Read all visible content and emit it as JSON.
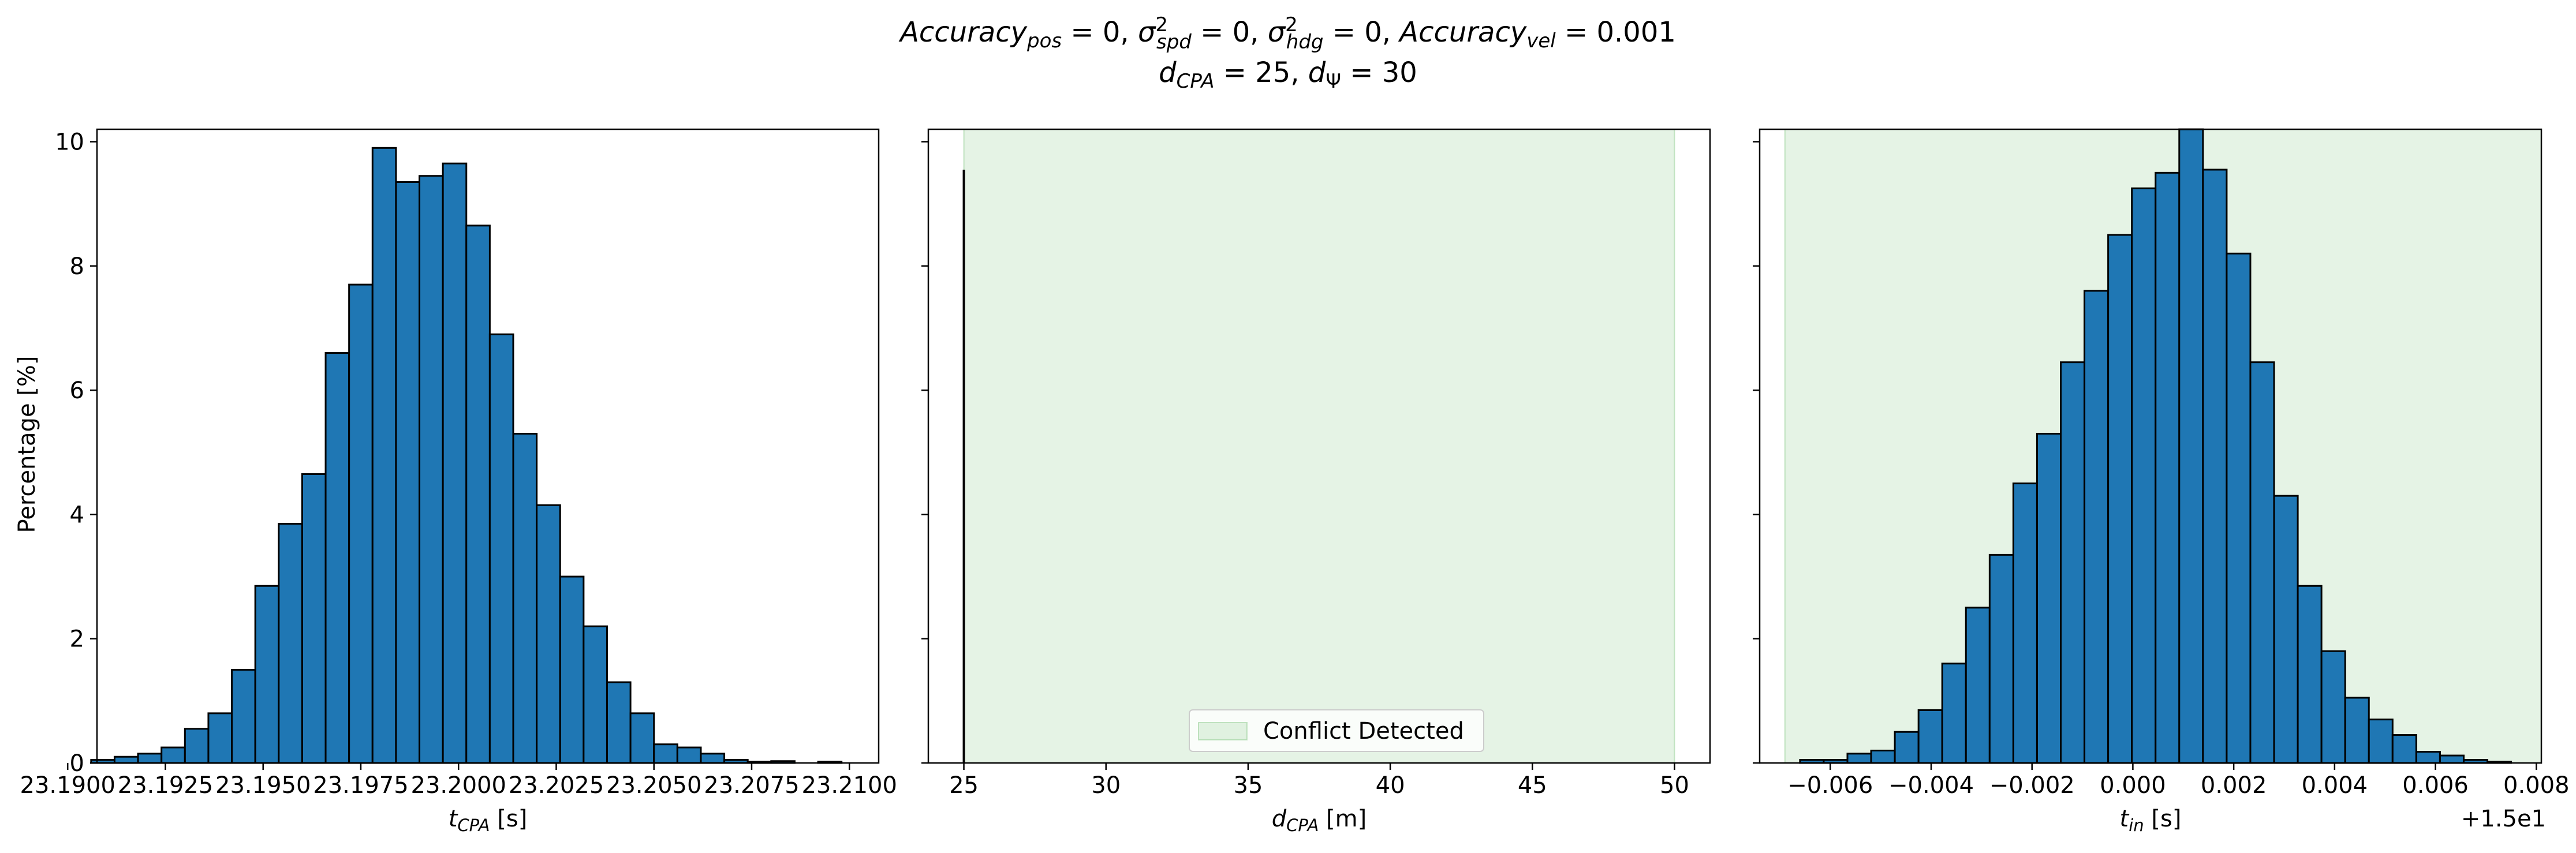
{
  "figure": {
    "title": {
      "line1": {
        "acc_pos": "Accuracy",
        "acc_pos_sub": "pos",
        "acc_pos_val": " = 0, ",
        "sigma_spd": "σ",
        "spd_sup": "2",
        "spd_sub": "spd",
        "spd_val": " = 0, ",
        "sigma_hdg": "σ",
        "hdg_sup": "2",
        "hdg_sub": "hdg",
        "hdg_val": " = 0, ",
        "acc_vel": "Accuracy",
        "acc_vel_sub": "vel",
        "acc_vel_val": " = 0.001"
      },
      "line2": {
        "d_cpa": "d",
        "d_cpa_sub": "CPA",
        "d_cpa_val": " = 25, ",
        "d_psi": "d",
        "d_psi_sub": "Ψ",
        "d_psi_val": " = 30"
      }
    }
  },
  "chart_data": [
    {
      "type": "bar",
      "subtype": "histogram",
      "bar_color": "#1f77b4",
      "edge_color": "#000000",
      "xlabel": {
        "main": "t",
        "sub": "CPA",
        "unit": " [s]"
      },
      "ylabel": "Percentage [%]",
      "xlim": [
        23.19075,
        23.21075
      ],
      "ylim": [
        0,
        10.2
      ],
      "xticks": [
        23.19,
        23.1925,
        23.195,
        23.1975,
        23.2,
        23.2025,
        23.205,
        23.2075,
        23.21
      ],
      "xtick_labels": [
        "23.1900",
        "23.1925",
        "23.1950",
        "23.1975",
        "23.2000",
        "23.2025",
        "23.2050",
        "23.2075",
        "23.2100"
      ],
      "yticks": [
        0,
        2,
        4,
        6,
        8,
        10
      ],
      "ytick_labels": [
        "0",
        "2",
        "4",
        "6",
        "8",
        "10"
      ],
      "bin_edges": [
        23.1906,
        23.1912,
        23.1918,
        23.1924,
        23.193,
        23.1936,
        23.1942,
        23.1948,
        23.1954,
        23.196,
        23.1966,
        23.1972,
        23.1978,
        23.1984,
        23.199,
        23.1996,
        23.2002,
        23.2008,
        23.2014,
        23.202,
        23.2026,
        23.2032,
        23.2038,
        23.2044,
        23.205,
        23.2056,
        23.2062,
        23.2068,
        23.2074,
        23.208,
        23.2086,
        23.2092,
        23.2098,
        23.2104
      ],
      "values": [
        0.05,
        0.1,
        0.15,
        0.25,
        0.55,
        0.8,
        1.5,
        2.85,
        3.85,
        4.65,
        6.6,
        7.7,
        9.9,
        9.35,
        9.45,
        9.65,
        8.65,
        6.9,
        5.3,
        4.15,
        3.0,
        2.2,
        1.3,
        0.8,
        0.3,
        0.25,
        0.15,
        0.05,
        0.02,
        0.03,
        0.0,
        0.02,
        0.0
      ],
      "grid": false
    },
    {
      "type": "bar",
      "subtype": "histogram",
      "bar_color": "#1f77b4",
      "edge_color": "#000000",
      "xlabel": {
        "main": "d",
        "sub": "CPA",
        "unit": " [m]"
      },
      "xlim": [
        23.75,
        51.25
      ],
      "ylim": [
        0,
        10.2
      ],
      "xticks": [
        25,
        30,
        35,
        40,
        45,
        50
      ],
      "xtick_labels": [
        "25",
        "30",
        "35",
        "40",
        "45",
        "50"
      ],
      "yticks": [
        0,
        2,
        4,
        6,
        8,
        10
      ],
      "shaded_region": {
        "x0": 25,
        "x1": 50,
        "color": "#2ca02c",
        "alpha": 0.12
      },
      "spike": {
        "x": 25,
        "value": 9.55
      },
      "legend": {
        "label": "Conflict Detected",
        "position": "lower center"
      },
      "grid": false
    },
    {
      "type": "bar",
      "subtype": "histogram",
      "bar_color": "#1f77b4",
      "edge_color": "#000000",
      "xlabel": {
        "main": "t",
        "sub": "in",
        "unit": " [s]"
      },
      "xlim": [
        -0.0074,
        0.0081
      ],
      "ylim": [
        0,
        10.2
      ],
      "xticks": [
        -0.006,
        -0.004,
        -0.002,
        0.0,
        0.002,
        0.004,
        0.006,
        0.008
      ],
      "xtick_labels": [
        "−0.006",
        "−0.004",
        "−0.002",
        "0.000",
        "0.002",
        "0.004",
        "0.006",
        "0.008"
      ],
      "x_offset_label": "+1.5e1",
      "yticks": [
        0,
        2,
        4,
        6,
        8,
        10
      ],
      "shaded_region": {
        "x0": -0.0069,
        "x1": 0.0081,
        "color": "#2ca02c",
        "alpha": 0.12
      },
      "bin_edges": [
        -0.0066,
        -0.00613,
        -0.00566,
        -0.00519,
        -0.00472,
        -0.00425,
        -0.00378,
        -0.00331,
        -0.00284,
        -0.00237,
        -0.0019,
        -0.00143,
        -0.00096,
        -0.00049,
        -2e-05,
        0.00045,
        0.00092,
        0.00139,
        0.00186,
        0.00233,
        0.0028,
        0.00327,
        0.00374,
        0.00421,
        0.00468,
        0.00515,
        0.00562,
        0.00609,
        0.00656,
        0.00703,
        0.0075
      ],
      "values": [
        0.05,
        0.05,
        0.15,
        0.2,
        0.5,
        0.85,
        1.6,
        2.5,
        3.35,
        4.5,
        5.3,
        6.45,
        7.6,
        8.5,
        9.25,
        9.5,
        10.2,
        9.55,
        8.2,
        6.45,
        4.3,
        2.85,
        1.8,
        1.05,
        0.7,
        0.45,
        0.18,
        0.12,
        0.05,
        0.02
      ],
      "grid": false
    }
  ]
}
